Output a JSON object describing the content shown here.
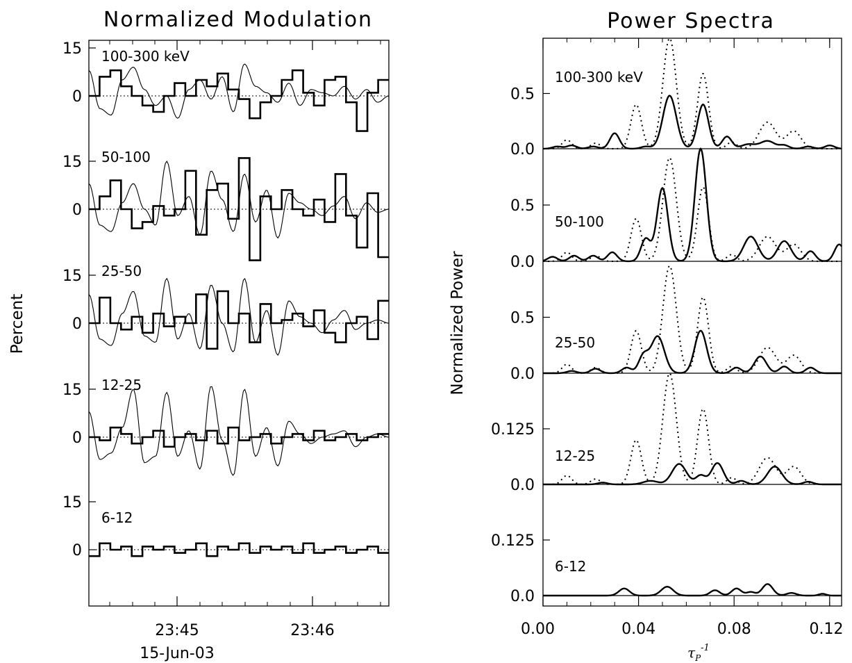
{
  "left_title": "Normalized Modulation",
  "right_title": "Power Spectra",
  "left_ylabel": "Percent",
  "right_ylabel": "Normalized Power",
  "left_xlabel": "15-Jun-03",
  "right_xlabel_symbol": "τ",
  "right_xlabel_sub": "P",
  "right_xlabel_sup": "-1",
  "chart_data": [
    {
      "type": "line",
      "title": "Normalized Modulation",
      "ylabel": "Percent",
      "xlabel": "15-Jun-03",
      "x_tick_labels": [
        "23:45",
        "23:46"
      ],
      "ylim": [
        -15,
        15
      ],
      "y_tick_labels": [
        "15",
        "0"
      ],
      "bins_per_panel": 28,
      "panels": [
        {
          "label": "100-300 keV",
          "histogram": [
            0,
            6,
            8,
            3,
            0,
            -3,
            -5,
            0,
            4,
            0,
            5,
            3,
            7,
            2,
            -1,
            -7,
            -2,
            0,
            5,
            8,
            1,
            -3,
            5,
            6,
            -2,
            -11,
            1,
            5
          ],
          "model": [
            8,
            -4,
            -6,
            5,
            9,
            2,
            -3,
            0,
            -7,
            2,
            5,
            -1,
            6,
            -5,
            10,
            3,
            1,
            -2,
            4,
            -3,
            2,
            1,
            0,
            3,
            -1,
            2,
            -2,
            0
          ]
        },
        {
          "label": "50-100",
          "histogram": [
            0,
            4,
            9,
            0,
            -6,
            -4,
            1,
            -2,
            0,
            12,
            -8,
            6,
            8,
            -3,
            16,
            -16,
            4,
            0,
            6,
            0,
            -2,
            3,
            -4,
            11,
            -2,
            -12,
            5,
            -15
          ],
          "model": [
            8,
            -5,
            -7,
            2,
            8,
            0,
            -5,
            15,
            -2,
            4,
            -8,
            12,
            3,
            -7,
            11,
            -4,
            6,
            -9,
            5,
            2,
            0,
            -2,
            1,
            4,
            -3,
            2,
            -1,
            0
          ]
        },
        {
          "label": "25-50",
          "histogram": [
            0,
            8,
            0,
            -2,
            2,
            -3,
            3,
            -1,
            2,
            0,
            9,
            -8,
            10,
            0,
            3,
            -6,
            6,
            0,
            1,
            3,
            -1,
            4,
            -3,
            -6,
            0,
            2,
            -5,
            7
          ],
          "model": [
            9,
            -5,
            -7,
            3,
            10,
            -4,
            -6,
            14,
            -5,
            3,
            -8,
            12,
            0,
            -9,
            14,
            -6,
            4,
            -10,
            7,
            2,
            0,
            -3,
            1,
            4,
            -2,
            0,
            1,
            0
          ]
        },
        {
          "label": "12-25",
          "histogram": [
            0,
            -1,
            3,
            1,
            -2,
            0,
            2,
            -3,
            0,
            1,
            -1,
            2,
            -2,
            3,
            -1,
            0,
            1,
            -2,
            0,
            1,
            -1,
            2,
            -1,
            0,
            1,
            -1,
            0,
            1
          ],
          "model": [
            8,
            -7,
            -5,
            3,
            15,
            -8,
            -6,
            14,
            -6,
            2,
            -10,
            16,
            -1,
            -12,
            15,
            -6,
            3,
            -9,
            5,
            1,
            -2,
            0,
            1,
            2,
            -3,
            0,
            1,
            0
          ]
        },
        {
          "label": "6-12",
          "histogram": [
            -2,
            2,
            0,
            1,
            -2,
            1,
            0,
            1,
            -1,
            0,
            2,
            -2,
            1,
            0,
            2,
            -1,
            1,
            0,
            1,
            -1,
            2,
            -1,
            0,
            1,
            -1,
            0,
            1,
            -1
          ],
          "model": []
        }
      ]
    },
    {
      "type": "line",
      "title": "Power Spectra",
      "ylabel": "Normalized Power",
      "xlabel": "τP-1",
      "xlim": [
        0,
        0.125
      ],
      "x_ticks": [
        0.0,
        0.04,
        0.08,
        0.12
      ],
      "x_tick_labels": [
        "0.00",
        "0.04",
        "0.08",
        "0.12"
      ],
      "panels": [
        {
          "label": "100-300 keV",
          "ylim": [
            0,
            1.0
          ],
          "y_ticks": [
            0.0,
            0.5
          ],
          "y_tick_labels": [
            "0.0",
            "0.5"
          ],
          "solid_peaks": [
            [
              0.006,
              0.02,
              0.002
            ],
            [
              0.012,
              0.03,
              0.002
            ],
            [
              0.021,
              0.02,
              0.002
            ],
            [
              0.03,
              0.14,
              0.002
            ],
            [
              0.043,
              0.02,
              0.002
            ],
            [
              0.053,
              0.48,
              0.0028
            ],
            [
              0.067,
              0.4,
              0.0023
            ],
            [
              0.077,
              0.11,
              0.002
            ],
            [
              0.086,
              0.04,
              0.003
            ],
            [
              0.094,
              0.07,
              0.003
            ],
            [
              0.101,
              0.03,
              0.002
            ],
            [
              0.111,
              0.02,
              0.002
            ],
            [
              0.12,
              0.03,
              0.002
            ]
          ],
          "dotted_peaks": [
            [
              0.01,
              0.08,
              0.002
            ],
            [
              0.022,
              0.05,
              0.002
            ],
            [
              0.039,
              0.4,
              0.0022
            ],
            [
              0.053,
              1.0,
              0.0028
            ],
            [
              0.067,
              0.68,
              0.0023
            ],
            [
              0.079,
              0.06,
              0.002
            ],
            [
              0.094,
              0.24,
              0.0035
            ],
            [
              0.105,
              0.16,
              0.003
            ]
          ]
        },
        {
          "label": "50-100",
          "ylim": [
            0,
            1.0
          ],
          "y_ticks": [
            0.0,
            0.5
          ],
          "y_tick_labels": [
            "0.0",
            "0.5"
          ],
          "solid_peaks": [
            [
              0.004,
              0.04,
              0.002
            ],
            [
              0.013,
              0.05,
              0.002
            ],
            [
              0.021,
              0.05,
              0.002
            ],
            [
              0.029,
              0.08,
              0.002
            ],
            [
              0.043,
              0.2,
              0.002
            ],
            [
              0.05,
              0.65,
              0.0023
            ],
            [
              0.066,
              1.0,
              0.0024
            ],
            [
              0.087,
              0.22,
              0.003
            ],
            [
              0.101,
              0.18,
              0.0028
            ],
            [
              0.112,
              0.09,
              0.002
            ],
            [
              0.124,
              0.15,
              0.002
            ]
          ],
          "dotted_peaks": [
            [
              0.01,
              0.08,
              0.002
            ],
            [
              0.022,
              0.05,
              0.002
            ],
            [
              0.039,
              0.38,
              0.0022
            ],
            [
              0.053,
              0.92,
              0.0028
            ],
            [
              0.067,
              0.66,
              0.0023
            ],
            [
              0.079,
              0.06,
              0.002
            ],
            [
              0.094,
              0.22,
              0.0035
            ],
            [
              0.105,
              0.15,
              0.003
            ]
          ]
        },
        {
          "label": "25-50",
          "ylim": [
            0,
            1.0
          ],
          "y_ticks": [
            0.0,
            0.5
          ],
          "y_tick_labels": [
            "0.0",
            "0.5"
          ],
          "solid_peaks": [
            [
              0.012,
              0.02,
              0.002
            ],
            [
              0.022,
              0.04,
              0.002
            ],
            [
              0.035,
              0.05,
              0.002
            ],
            [
              0.042,
              0.15,
              0.002
            ],
            [
              0.048,
              0.33,
              0.0028
            ],
            [
              0.066,
              0.38,
              0.0025
            ],
            [
              0.081,
              0.05,
              0.002
            ],
            [
              0.091,
              0.15,
              0.0025
            ],
            [
              0.101,
              0.06,
              0.002
            ],
            [
              0.112,
              0.05,
              0.002
            ]
          ],
          "dotted_peaks": [
            [
              0.01,
              0.08,
              0.002
            ],
            [
              0.022,
              0.05,
              0.002
            ],
            [
              0.039,
              0.38,
              0.0022
            ],
            [
              0.053,
              0.96,
              0.0028
            ],
            [
              0.067,
              0.68,
              0.0023
            ],
            [
              0.079,
              0.06,
              0.002
            ],
            [
              0.094,
              0.23,
              0.0035
            ],
            [
              0.105,
              0.16,
              0.003
            ]
          ]
        },
        {
          "label": "12-25",
          "ylim": [
            0,
            0.25
          ],
          "y_ticks": [
            0.0,
            0.125
          ],
          "y_tick_labels": [
            "0.0",
            "0.125"
          ],
          "solid_peaks": [
            [
              0.025,
              0.004,
              0.002
            ],
            [
              0.045,
              0.008,
              0.003
            ],
            [
              0.057,
              0.046,
              0.003
            ],
            [
              0.066,
              0.02,
              0.002
            ],
            [
              0.073,
              0.048,
              0.0025
            ],
            [
              0.083,
              0.008,
              0.002
            ],
            [
              0.097,
              0.04,
              0.003
            ],
            [
              0.111,
              0.006,
              0.002
            ]
          ],
          "dotted_peaks": [
            [
              0.01,
              0.02,
              0.002
            ],
            [
              0.022,
              0.012,
              0.002
            ],
            [
              0.039,
              0.1,
              0.0022
            ],
            [
              0.053,
              0.25,
              0.0028
            ],
            [
              0.067,
              0.17,
              0.0023
            ],
            [
              0.079,
              0.015,
              0.002
            ],
            [
              0.094,
              0.06,
              0.0035
            ],
            [
              0.105,
              0.04,
              0.003
            ]
          ]
        },
        {
          "label": "6-12",
          "ylim": [
            0,
            0.25
          ],
          "y_ticks": [
            0.0,
            0.125
          ],
          "y_tick_labels": [
            "0.0",
            "0.125"
          ],
          "solid_peaks": [
            [
              0.034,
              0.016,
              0.0022
            ],
            [
              0.052,
              0.02,
              0.0025
            ],
            [
              0.072,
              0.012,
              0.002
            ],
            [
              0.081,
              0.016,
              0.002
            ],
            [
              0.087,
              0.008,
              0.0018
            ],
            [
              0.094,
              0.026,
              0.0022
            ],
            [
              0.104,
              0.006,
              0.002
            ],
            [
              0.117,
              0.004,
              0.0015
            ]
          ],
          "dotted_peaks": []
        }
      ]
    }
  ]
}
